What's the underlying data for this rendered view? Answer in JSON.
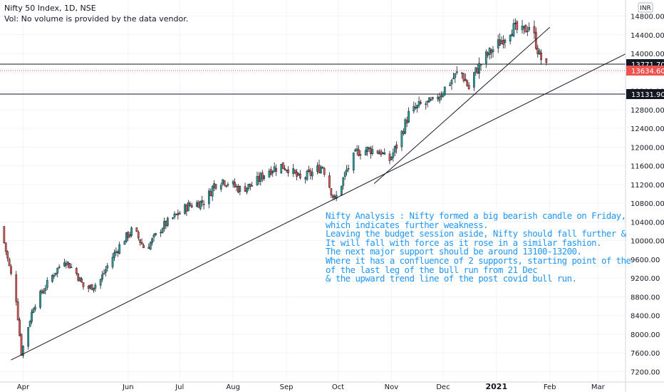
{
  "header": {
    "symbol": "Nifty 50 Index, 1D, NSE",
    "volume_note": "Vol: No volume is provided by the data vendor."
  },
  "currency_badge": "INR",
  "annotation": [
    "Nifty Analysis : Nifty formed a big bearish candle on Friday,",
    "which indicates further weakness.",
    "Leaving the budget session aside, Nifty should fall further &",
    "It will fall with force as it rose in a similar fashion.",
    "The next major support should be around 13100-13200.",
    "Where it has a confluence of 2 supports, starting point of the",
    "of the last leg of the bull run from 21 Dec",
    "& the upward trend line of the post covid bull run."
  ],
  "colors": {
    "up": "#26a69a",
    "down": "#ef5350",
    "grid": "#f0f3fa",
    "axis": "#131722",
    "note": "#2196f3",
    "last_price": "#ef5350"
  },
  "chart_data": {
    "type": "candlestick",
    "y_axis": {
      "min": 7100,
      "max": 14900,
      "step": 400,
      "ticks": [
        "7200.00",
        "7600.00",
        "8000.00",
        "8400.00",
        "8800.00",
        "9200.00",
        "9600.00",
        "10000.00",
        "10400.00",
        "10800.00",
        "11200.00",
        "11600.00",
        "12000.00",
        "12400.00",
        "12800.00",
        "13200.00",
        "13600.00",
        "14000.00",
        "14400.00",
        "14800.00"
      ]
    },
    "x_axis": {
      "labels": [
        {
          "text": "Apr",
          "day": 4
        },
        {
          "text": "Jun",
          "day": 65
        },
        {
          "text": "Jul",
          "day": 95
        },
        {
          "text": "Aug",
          "day": 126
        },
        {
          "text": "Sep",
          "day": 157
        },
        {
          "text": "Oct",
          "day": 187
        },
        {
          "text": "Nov",
          "day": 218
        },
        {
          "text": "Dec",
          "day": 248
        },
        {
          "text": "2021",
          "day": 279
        },
        {
          "text": "Feb",
          "day": 310
        },
        {
          "text": "Mar",
          "day": 338
        }
      ],
      "day_range": [
        -9,
        354
      ]
    },
    "horizontal_lines": [
      {
        "label": "13771.70",
        "value": 13771.7,
        "style": "solid"
      },
      {
        "label": "13131.90",
        "value": 13131.9,
        "style": "solid"
      }
    ],
    "last_price": {
      "label": "13634.60",
      "value": 13634.6
    },
    "trend_lines": [
      {
        "from": {
          "day": -3,
          "price": 7450
        },
        "to": {
          "day": 354,
          "price": 13990
        }
      },
      {
        "from": {
          "day": 208,
          "price": 11220
        },
        "to": {
          "day": 310,
          "price": 14560
        }
      }
    ],
    "anchors": [
      {
        "day": -9,
        "price": 10300
      },
      {
        "day": 0,
        "price": 8750
      },
      {
        "day": 3,
        "price": 7600
      },
      {
        "day": 10,
        "price": 8600
      },
      {
        "day": 20,
        "price": 9200
      },
      {
        "day": 28,
        "price": 9600
      },
      {
        "day": 35,
        "price": 9300
      },
      {
        "day": 40,
        "price": 8950
      },
      {
        "day": 48,
        "price": 9100
      },
      {
        "day": 55,
        "price": 9600
      },
      {
        "day": 62,
        "price": 10000
      },
      {
        "day": 68,
        "price": 10250
      },
      {
        "day": 75,
        "price": 9800
      },
      {
        "day": 85,
        "price": 10300
      },
      {
        "day": 95,
        "price": 10600
      },
      {
        "day": 100,
        "price": 10750
      },
      {
        "day": 110,
        "price": 10850
      },
      {
        "day": 115,
        "price": 11200
      },
      {
        "day": 120,
        "price": 11300
      },
      {
        "day": 130,
        "price": 11100
      },
      {
        "day": 138,
        "price": 11200
      },
      {
        "day": 146,
        "price": 11500
      },
      {
        "day": 154,
        "price": 11600
      },
      {
        "day": 158,
        "price": 11550
      },
      {
        "day": 165,
        "price": 11300
      },
      {
        "day": 172,
        "price": 11450
      },
      {
        "day": 178,
        "price": 11600
      },
      {
        "day": 185,
        "price": 10850
      },
      {
        "day": 192,
        "price": 11500
      },
      {
        "day": 198,
        "price": 11900
      },
      {
        "day": 205,
        "price": 11950
      },
      {
        "day": 212,
        "price": 11900
      },
      {
        "day": 216,
        "price": 11650
      },
      {
        "day": 222,
        "price": 12100
      },
      {
        "day": 228,
        "price": 12700
      },
      {
        "day": 235,
        "price": 12900
      },
      {
        "day": 242,
        "price": 12950
      },
      {
        "day": 250,
        "price": 13300
      },
      {
        "day": 258,
        "price": 13650
      },
      {
        "day": 263,
        "price": 13250
      },
      {
        "day": 265,
        "price": 13500
      },
      {
        "day": 272,
        "price": 13900
      },
      {
        "day": 280,
        "price": 14200
      },
      {
        "day": 288,
        "price": 14550
      },
      {
        "day": 294,
        "price": 14450
      },
      {
        "day": 298,
        "price": 14600
      },
      {
        "day": 301,
        "price": 14350
      },
      {
        "day": 304,
        "price": 13950
      },
      {
        "day": 308,
        "price": 13700
      }
    ]
  }
}
